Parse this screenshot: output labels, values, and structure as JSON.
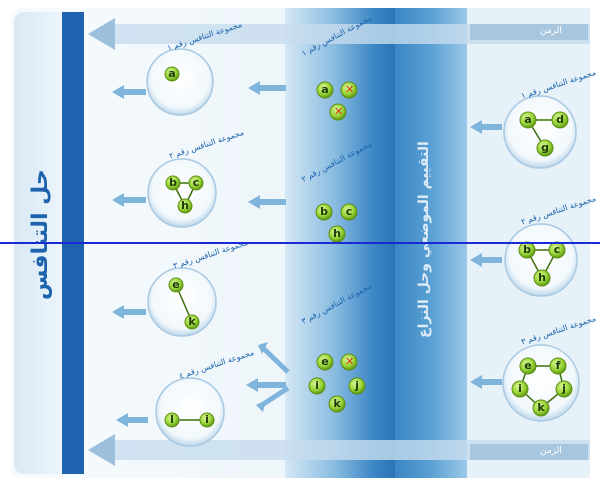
{
  "colors": {
    "node_fill": "#9bd63a",
    "node_stroke": "#5e8f14",
    "node_text": "#1d3a06",
    "red_x": "#d43a1a",
    "blue_dark": "#1b63ac",
    "blue_mid": "#5fa1d4",
    "bg_light": "#eaf3f8"
  },
  "left_band": {
    "title": "حل التنافس"
  },
  "mid_band": {
    "title": "التقييم الموضعي وحل النزاع"
  },
  "time_label": {
    "top": "الزمن",
    "bottom": "الزمن"
  },
  "left_column": [
    {
      "label": "مجموعة التنافس رقم ١",
      "nodes": [
        "a"
      ]
    },
    {
      "label": "مجموعة التنافس رقم ٢",
      "nodes": [
        "b",
        "c",
        "h"
      ]
    },
    {
      "label": "مجموعة التنافس رقم ٣",
      "nodes": [
        "e",
        "k"
      ]
    },
    {
      "label": "مجموعة التنافس رقم ٤",
      "nodes": [
        "l",
        "i"
      ]
    }
  ],
  "center_column": [
    {
      "label": "مجموعة التنافس رقم ١",
      "nodes": [
        "a",
        "x",
        "x"
      ]
    },
    {
      "label": "مجموعة التنافس رقم ٢",
      "nodes": [
        "b",
        "c",
        "h"
      ]
    },
    {
      "label": "مجموعة التنافس رقم ٣",
      "nodes": [
        "e",
        "x",
        "i",
        "j",
        "k"
      ]
    }
  ],
  "right_column": [
    {
      "label": "مجموعة التنافس رقم ١",
      "nodes": [
        "a",
        "d",
        "g"
      ]
    },
    {
      "label": "مجموعة التنافس رقم ٢",
      "nodes": [
        "b",
        "c",
        "h"
      ]
    },
    {
      "label": "مجموعة التنافس رقم ٣",
      "nodes": [
        "e",
        "f",
        "i",
        "j",
        "k"
      ]
    }
  ]
}
